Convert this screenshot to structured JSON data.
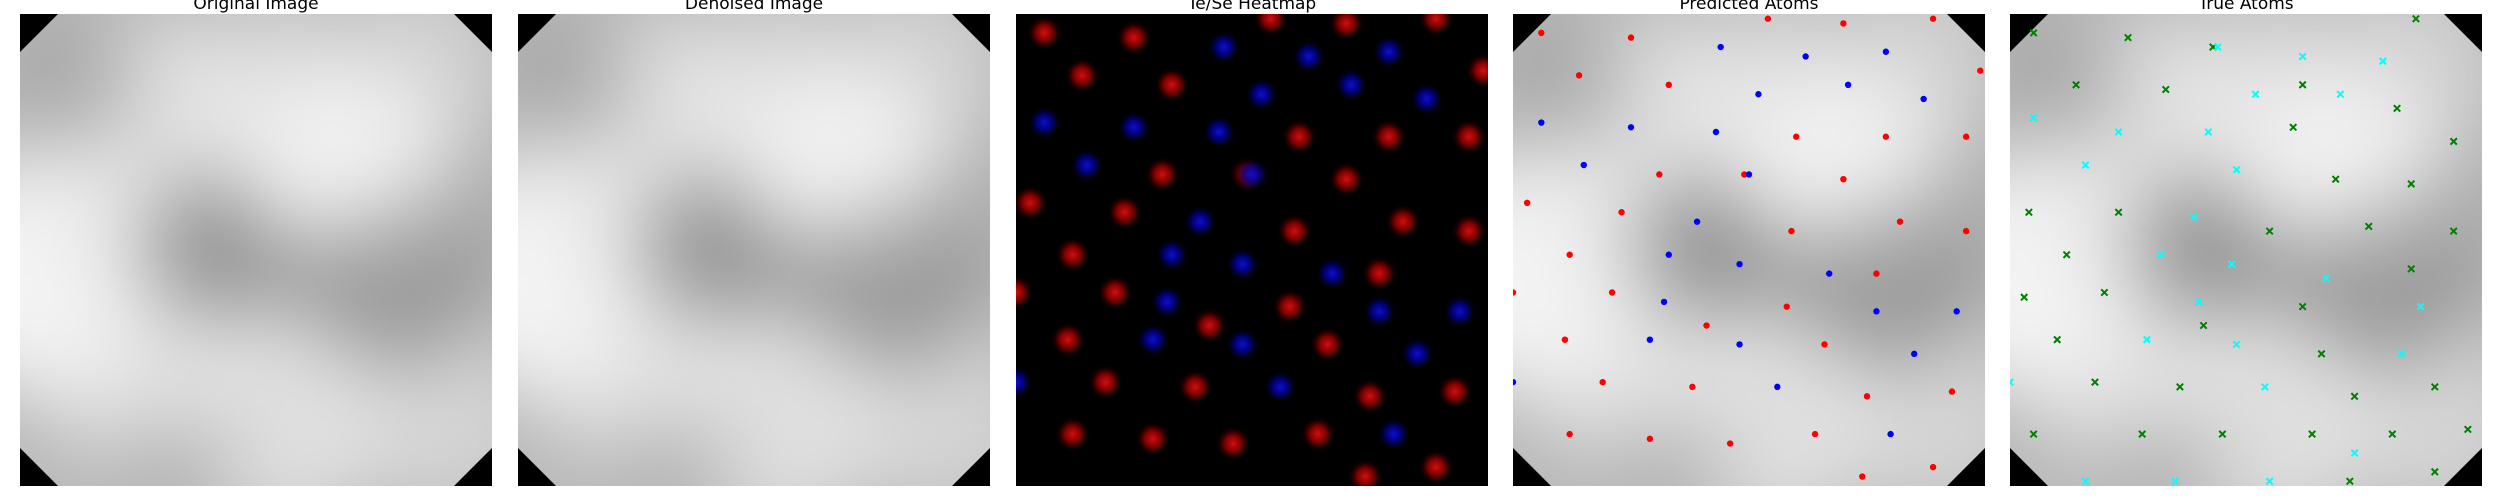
{
  "panels": [
    {
      "title": "Original Image",
      "kind": "grayscale"
    },
    {
      "title": "Denoised Image",
      "kind": "grayscale"
    },
    {
      "title": "Te/Se Heatmap",
      "kind": "heatmap"
    },
    {
      "title": "Predicted Atoms",
      "kind": "predicted"
    },
    {
      "title": "True Atoms",
      "kind": "true"
    }
  ],
  "colors": {
    "te_dot": "#ff0000",
    "se_dot": "#0000ff",
    "true_te": "#008000",
    "true_se": "#00ffff",
    "heat_red": "#d01010",
    "heat_blue": "#1010c8",
    "background": "#000000"
  },
  "predicted_atoms": {
    "red": [
      [
        0.06,
        0.04
      ],
      [
        0.25,
        0.05
      ],
      [
        0.54,
        0.01
      ],
      [
        0.7,
        0.02
      ],
      [
        0.89,
        0.01
      ],
      [
        0.99,
        0.12
      ],
      [
        0.14,
        0.13
      ],
      [
        0.33,
        0.15
      ],
      [
        0.6,
        0.26
      ],
      [
        0.79,
        0.26
      ],
      [
        0.96,
        0.26
      ],
      [
        0.03,
        0.4
      ],
      [
        0.23,
        0.42
      ],
      [
        0.31,
        0.34
      ],
      [
        0.49,
        0.34
      ],
      [
        0.7,
        0.35
      ],
      [
        0.82,
        0.44
      ],
      [
        0.96,
        0.46
      ],
      [
        0.12,
        0.51
      ],
      [
        0.59,
        0.46
      ],
      [
        0.0,
        0.59
      ],
      [
        0.21,
        0.59
      ],
      [
        0.41,
        0.66
      ],
      [
        0.58,
        0.62
      ],
      [
        0.77,
        0.55
      ],
      [
        0.66,
        0.7
      ],
      [
        0.11,
        0.69
      ],
      [
        0.19,
        0.78
      ],
      [
        0.38,
        0.79
      ],
      [
        0.75,
        0.81
      ],
      [
        0.93,
        0.8
      ],
      [
        0.89,
        0.96
      ],
      [
        0.12,
        0.89
      ],
      [
        0.29,
        0.9
      ],
      [
        0.46,
        0.91
      ],
      [
        0.64,
        0.89
      ],
      [
        0.74,
        0.98
      ]
    ],
    "blue": [
      [
        0.44,
        0.07
      ],
      [
        0.62,
        0.09
      ],
      [
        0.79,
        0.08
      ],
      [
        0.52,
        0.17
      ],
      [
        0.71,
        0.15
      ],
      [
        0.87,
        0.18
      ],
      [
        0.06,
        0.23
      ],
      [
        0.25,
        0.24
      ],
      [
        0.43,
        0.25
      ],
      [
        0.15,
        0.32
      ],
      [
        0.5,
        0.34
      ],
      [
        0.39,
        0.44
      ],
      [
        0.33,
        0.51
      ],
      [
        0.48,
        0.53
      ],
      [
        0.67,
        0.55
      ],
      [
        0.32,
        0.61
      ],
      [
        0.77,
        0.63
      ],
      [
        0.94,
        0.63
      ],
      [
        0.29,
        0.69
      ],
      [
        0.48,
        0.7
      ],
      [
        0.85,
        0.72
      ],
      [
        0.0,
        0.78
      ],
      [
        0.56,
        0.79
      ],
      [
        0.8,
        0.89
      ]
    ]
  },
  "true_atoms": {
    "green": [
      [
        0.05,
        0.04
      ],
      [
        0.25,
        0.05
      ],
      [
        0.43,
        0.07
      ],
      [
        0.86,
        0.01
      ],
      [
        0.14,
        0.15
      ],
      [
        0.33,
        0.16
      ],
      [
        0.62,
        0.15
      ],
      [
        0.82,
        0.2
      ],
      [
        0.94,
        0.27
      ],
      [
        0.6,
        0.24
      ],
      [
        0.85,
        0.36
      ],
      [
        0.69,
        0.35
      ],
      [
        0.04,
        0.42
      ],
      [
        0.23,
        0.42
      ],
      [
        0.55,
        0.46
      ],
      [
        0.76,
        0.45
      ],
      [
        0.94,
        0.46
      ],
      [
        0.12,
        0.51
      ],
      [
        0.85,
        0.54
      ],
      [
        0.03,
        0.6
      ],
      [
        0.2,
        0.59
      ],
      [
        0.62,
        0.62
      ],
      [
        0.41,
        0.66
      ],
      [
        0.1,
        0.69
      ],
      [
        0.66,
        0.72
      ],
      [
        0.18,
        0.78
      ],
      [
        0.36,
        0.79
      ],
      [
        0.73,
        0.81
      ],
      [
        0.9,
        0.79
      ],
      [
        0.05,
        0.89
      ],
      [
        0.28,
        0.89
      ],
      [
        0.45,
        0.89
      ],
      [
        0.64,
        0.89
      ],
      [
        0.81,
        0.89
      ],
      [
        0.97,
        0.88
      ],
      [
        0.9,
        0.97
      ],
      [
        0.72,
        0.99
      ]
    ],
    "cyan": [
      [
        0.44,
        0.07
      ],
      [
        0.62,
        0.09
      ],
      [
        0.79,
        0.1
      ],
      [
        0.52,
        0.17
      ],
      [
        0.7,
        0.17
      ],
      [
        0.05,
        0.22
      ],
      [
        0.23,
        0.25
      ],
      [
        0.42,
        0.25
      ],
      [
        0.16,
        0.32
      ],
      [
        0.48,
        0.33
      ],
      [
        0.39,
        0.43
      ],
      [
        0.32,
        0.51
      ],
      [
        0.47,
        0.53
      ],
      [
        0.67,
        0.56
      ],
      [
        0.4,
        0.61
      ],
      [
        0.87,
        0.62
      ],
      [
        0.29,
        0.69
      ],
      [
        0.48,
        0.7
      ],
      [
        0.83,
        0.72
      ],
      [
        0.0,
        0.78
      ],
      [
        0.54,
        0.79
      ],
      [
        0.16,
        0.99
      ],
      [
        0.35,
        0.99
      ],
      [
        0.55,
        0.99
      ],
      [
        0.73,
        0.93
      ]
    ]
  }
}
